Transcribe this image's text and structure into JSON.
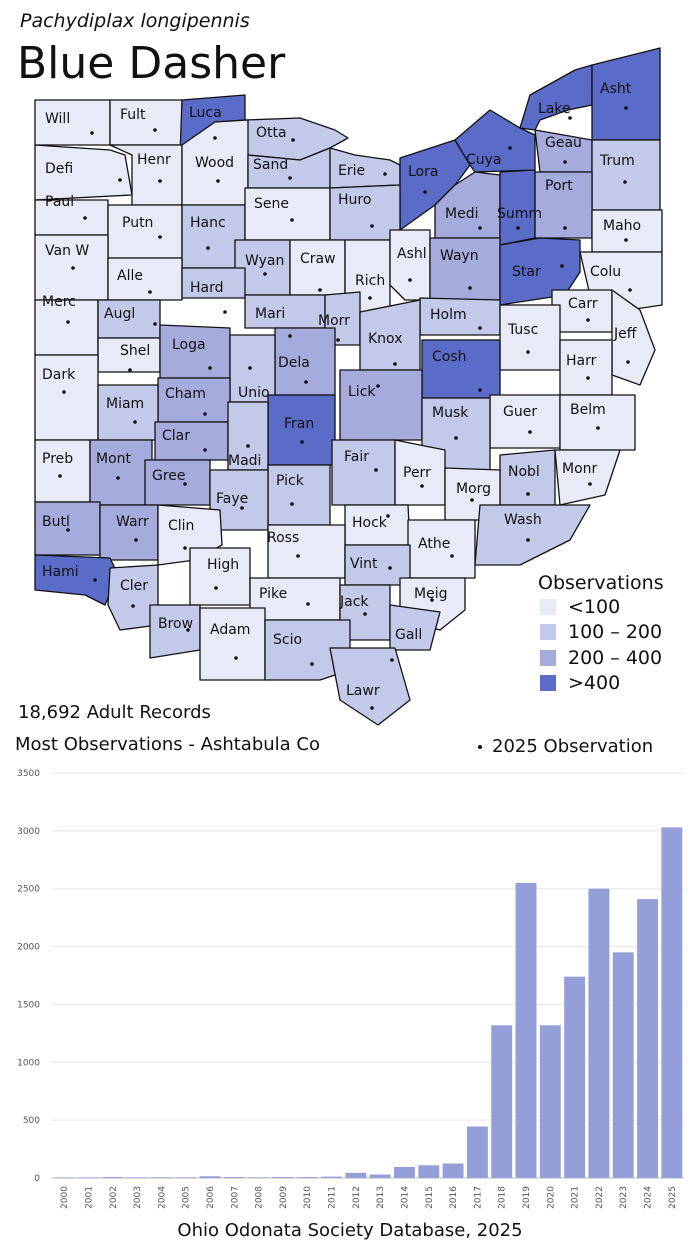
{
  "header": {
    "species": "Pachydiplax longipennis",
    "common_name": "Blue Dasher"
  },
  "legend": {
    "title": "Observations",
    "items": [
      {
        "label": "<100",
        "color": "#e8eaf7"
      },
      {
        "label": "100 – 200",
        "color": "#c3c9e8"
      },
      {
        "label": "200 – 400",
        "color": "#a5acdd"
      },
      {
        "label": ">400",
        "color": "#5a6cc8"
      }
    ]
  },
  "stats": {
    "records": "18,692 Adult Records",
    "most": "Most Observations - Ashtabula Co",
    "observation_key": "2025  Observation"
  },
  "counties": [
    {
      "name": "Will",
      "cls": 0
    },
    {
      "name": "Fult",
      "cls": 0
    },
    {
      "name": "Luca",
      "cls": 3
    },
    {
      "name": "Otta",
      "cls": 1
    },
    {
      "name": "Lake",
      "cls": 3
    },
    {
      "name": "Asht",
      "cls": 3
    },
    {
      "name": "Defi",
      "cls": 0
    },
    {
      "name": "Henr",
      "cls": 0
    },
    {
      "name": "Wood",
      "cls": 0
    },
    {
      "name": "Sand",
      "cls": 1
    },
    {
      "name": "Erie",
      "cls": 1
    },
    {
      "name": "Lora",
      "cls": 3
    },
    {
      "name": "Cuya",
      "cls": 3
    },
    {
      "name": "Geau",
      "cls": 2
    },
    {
      "name": "Trum",
      "cls": 1
    },
    {
      "name": "Paul",
      "cls": 0
    },
    {
      "name": "Putn",
      "cls": 0
    },
    {
      "name": "Hanc",
      "cls": 1
    },
    {
      "name": "Sene",
      "cls": 0
    },
    {
      "name": "Huro",
      "cls": 1
    },
    {
      "name": "Medi",
      "cls": 2
    },
    {
      "name": "Summ",
      "cls": 3
    },
    {
      "name": "Port",
      "cls": 2
    },
    {
      "name": "Maho",
      "cls": 0
    },
    {
      "name": "Van W",
      "cls": 0
    },
    {
      "name": "Alle",
      "cls": 0
    },
    {
      "name": "Wyan",
      "cls": 1
    },
    {
      "name": "Craw",
      "cls": 0
    },
    {
      "name": "Rich",
      "cls": 0
    },
    {
      "name": "Ashl",
      "cls": 0
    },
    {
      "name": "Wayn",
      "cls": 2
    },
    {
      "name": "Star",
      "cls": 3
    },
    {
      "name": "Colu",
      "cls": 0
    },
    {
      "name": "Merc",
      "cls": 0
    },
    {
      "name": "Hard",
      "cls": 1
    },
    {
      "name": "Augl",
      "cls": 1
    },
    {
      "name": "Mari",
      "cls": 1
    },
    {
      "name": "Morr",
      "cls": 1
    },
    {
      "name": "Holm",
      "cls": 1
    },
    {
      "name": "Carr",
      "cls": 0
    },
    {
      "name": "Tusc",
      "cls": 0
    },
    {
      "name": "Jeff",
      "cls": 0
    },
    {
      "name": "Shel",
      "cls": 0
    },
    {
      "name": "Loga",
      "cls": 2
    },
    {
      "name": "Knox",
      "cls": 1
    },
    {
      "name": "Dela",
      "cls": 2
    },
    {
      "name": "Cosh",
      "cls": 3
    },
    {
      "name": "Harr",
      "cls": 0
    },
    {
      "name": "Dark",
      "cls": 0
    },
    {
      "name": "Unio",
      "cls": 1
    },
    {
      "name": "Cham",
      "cls": 2
    },
    {
      "name": "Lick",
      "cls": 2
    },
    {
      "name": "Miam",
      "cls": 1
    },
    {
      "name": "Guer",
      "cls": 0
    },
    {
      "name": "Belm",
      "cls": 0
    },
    {
      "name": "Musk",
      "cls": 1
    },
    {
      "name": "Fran",
      "cls": 3
    },
    {
      "name": "Clar",
      "cls": 2
    },
    {
      "name": "Madi",
      "cls": 1
    },
    {
      "name": "Preb",
      "cls": 0
    },
    {
      "name": "Mont",
      "cls": 2
    },
    {
      "name": "Gree",
      "cls": 2
    },
    {
      "name": "Fair",
      "cls": 1
    },
    {
      "name": "Perr",
      "cls": 0
    },
    {
      "name": "Nobl",
      "cls": 1
    },
    {
      "name": "Monr",
      "cls": 0
    },
    {
      "name": "Pick",
      "cls": 1
    },
    {
      "name": "Morg",
      "cls": 0
    },
    {
      "name": "Faye",
      "cls": 1
    },
    {
      "name": "Butl",
      "cls": 2
    },
    {
      "name": "Warr",
      "cls": 2
    },
    {
      "name": "Clin",
      "cls": 0
    },
    {
      "name": "Hock",
      "cls": 0
    },
    {
      "name": "Wash",
      "cls": 1
    },
    {
      "name": "Ross",
      "cls": 0
    },
    {
      "name": "Athe",
      "cls": 0
    },
    {
      "name": "Vint",
      "cls": 1
    },
    {
      "name": "Hami",
      "cls": 3
    },
    {
      "name": "High",
      "cls": 0
    },
    {
      "name": "Cler",
      "cls": 1
    },
    {
      "name": "Pike",
      "cls": 0
    },
    {
      "name": "Jack",
      "cls": 1
    },
    {
      "name": "Meig",
      "cls": 0
    },
    {
      "name": "Brow",
      "cls": 1
    },
    {
      "name": "Adam",
      "cls": 0
    },
    {
      "name": "Scio",
      "cls": 1
    },
    {
      "name": "Gall",
      "cls": 1
    },
    {
      "name": "Lawr",
      "cls": 1
    }
  ],
  "chart_data": {
    "type": "bar",
    "categories": [
      "2000",
      "2001",
      "2002",
      "2003",
      "2004",
      "2005",
      "2006",
      "2007",
      "2008",
      "2009",
      "2010",
      "2011",
      "2012",
      "2013",
      "2014",
      "2015",
      "2016",
      "2017",
      "2018",
      "2019",
      "2020",
      "2021",
      "2022",
      "2023",
      "2024",
      "2025"
    ],
    "values": [
      5,
      5,
      8,
      6,
      6,
      6,
      15,
      8,
      6,
      8,
      8,
      12,
      45,
      30,
      95,
      110,
      125,
      445,
      1320,
      2550,
      1320,
      1740,
      2500,
      1950,
      2410,
      3030
    ],
    "ylim": [
      0,
      3500
    ],
    "yticks": [
      0,
      500,
      1000,
      1500,
      2000,
      2500,
      3000,
      3500
    ],
    "bar_color": "#949fda",
    "grid": true
  },
  "footer": {
    "source": "Ohio Odonata Society Database, 2025"
  }
}
